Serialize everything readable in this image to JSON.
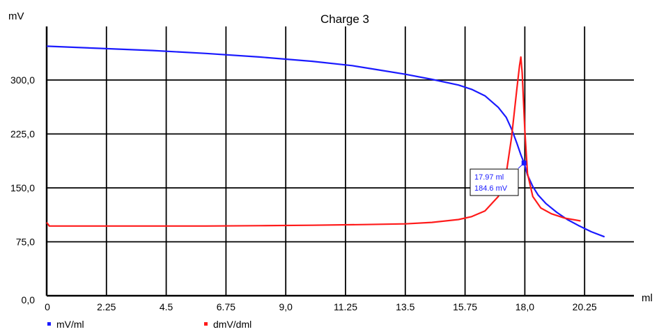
{
  "chart_data": {
    "type": "line",
    "title": "Charge 3",
    "ylabel": "mV",
    "xlabel": "ml",
    "xlim": [
      0,
      22.05
    ],
    "ylim": [
      0,
      375
    ],
    "x_ticks": [
      0,
      2.25,
      4.5,
      6.75,
      9.0,
      11.25,
      13.5,
      15.75,
      18.0,
      20.25
    ],
    "x_tick_labels": [
      "0",
      "2.25",
      "4.5",
      "6.75",
      "9,0",
      "11.25",
      "13.5",
      "15.75",
      "18,0",
      "20.25"
    ],
    "y_ticks": [
      0,
      75,
      150,
      225,
      300
    ],
    "y_tick_labels": [
      "0,0",
      "75,0",
      "150,0",
      "225,0",
      "300,0"
    ],
    "grid": true,
    "legend_position": "bottom-left",
    "series": [
      {
        "name": "mV/ml",
        "color": "#1a1aff",
        "points": [
          [
            0,
            347
          ],
          [
            2,
            344
          ],
          [
            4,
            341
          ],
          [
            6,
            337
          ],
          [
            8,
            332
          ],
          [
            10,
            326
          ],
          [
            11.5,
            320
          ],
          [
            12.5,
            314
          ],
          [
            13.5,
            308
          ],
          [
            14.5,
            301
          ],
          [
            15.5,
            293
          ],
          [
            16,
            287
          ],
          [
            16.5,
            278
          ],
          [
            17,
            262
          ],
          [
            17.3,
            248
          ],
          [
            17.5,
            232
          ],
          [
            17.7,
            212
          ],
          [
            17.85,
            196
          ],
          [
            17.97,
            184.6
          ],
          [
            18.1,
            168
          ],
          [
            18.3,
            152
          ],
          [
            18.5,
            140
          ],
          [
            18.8,
            128
          ],
          [
            19.2,
            116
          ],
          [
            19.6,
            106
          ],
          [
            20,
            98
          ],
          [
            20.5,
            89
          ],
          [
            21,
            82
          ]
        ]
      },
      {
        "name": "dmV/dml",
        "color": "#ff1a1a",
        "points": [
          [
            0,
            102
          ],
          [
            0.1,
            97
          ],
          [
            2,
            97
          ],
          [
            4,
            97
          ],
          [
            6,
            97
          ],
          [
            8,
            97.5
          ],
          [
            10,
            98
          ],
          [
            12,
            99
          ],
          [
            13.5,
            100
          ],
          [
            14.5,
            102
          ],
          [
            15.5,
            106
          ],
          [
            16,
            110
          ],
          [
            16.5,
            118
          ],
          [
            17,
            138
          ],
          [
            17.3,
            170
          ],
          [
            17.5,
            220
          ],
          [
            17.7,
            288
          ],
          [
            17.8,
            320
          ],
          [
            17.85,
            332
          ],
          [
            17.9,
            310
          ],
          [
            18,
            230
          ],
          [
            18.1,
            170
          ],
          [
            18.3,
            138
          ],
          [
            18.6,
            122
          ],
          [
            19,
            114
          ],
          [
            19.5,
            108
          ],
          [
            20.1,
            104
          ]
        ]
      }
    ],
    "annotation": {
      "x": 17.97,
      "y": 184.6,
      "line1": "17.97 ml",
      "line2": "184.6 mV",
      "color": "#1a1aff"
    }
  }
}
